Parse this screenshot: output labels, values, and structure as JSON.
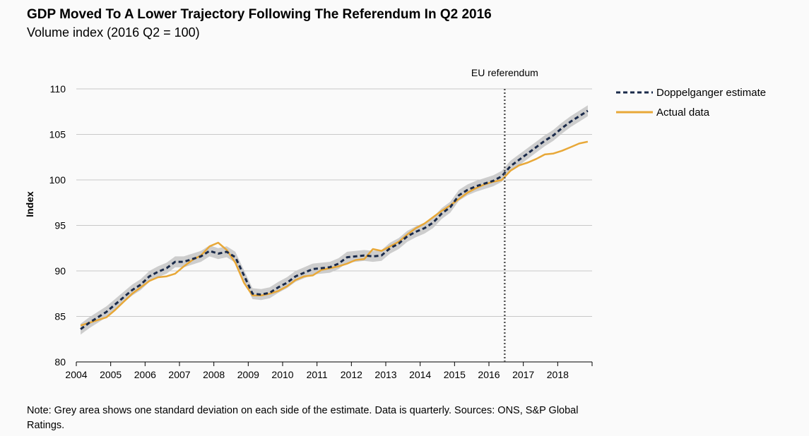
{
  "header": {
    "title": "GDP Moved To A Lower Trajectory Following The Referendum In Q2 2016",
    "subtitle": "Volume index (2016 Q2 = 100)"
  },
  "note": "Note: Grey area shows one standard deviation on each side of the estimate. Data is quarterly. Sources: ONS, S&P Global Ratings.",
  "chart_data": {
    "type": "line",
    "title": "GDP Moved To A Lower Trajectory Following The Referendum In Q2 2016",
    "subtitle": "Volume index (2016 Q2 = 100)",
    "xlabel": "",
    "ylabel": "Index",
    "x_ticks": [
      "2004",
      "2005",
      "2006",
      "2007",
      "2008",
      "2009",
      "2010",
      "2011",
      "2012",
      "2013",
      "2014",
      "2015",
      "2016",
      "2017",
      "2018"
    ],
    "y_ticks": [
      80,
      85,
      90,
      95,
      100,
      105,
      110
    ],
    "ylim": [
      80,
      110
    ],
    "xlim": [
      "2004 Q1",
      "2018 Q4"
    ],
    "grid": "horizontal",
    "legend_position": "top-right, outside plot",
    "annotation": {
      "label": "EU referendum",
      "x": "2016 Q2",
      "style": "dotted vertical line"
    },
    "band": {
      "description": "one standard deviation on each side of the estimate",
      "width": 0.6,
      "color": "#c8c8c8"
    },
    "x": [
      "2004 Q1",
      "2004 Q2",
      "2004 Q3",
      "2004 Q4",
      "2005 Q1",
      "2005 Q2",
      "2005 Q3",
      "2005 Q4",
      "2006 Q1",
      "2006 Q2",
      "2006 Q3",
      "2006 Q4",
      "2007 Q1",
      "2007 Q2",
      "2007 Q3",
      "2007 Q4",
      "2008 Q1",
      "2008 Q2",
      "2008 Q3",
      "2008 Q4",
      "2009 Q1",
      "2009 Q2",
      "2009 Q3",
      "2009 Q4",
      "2010 Q1",
      "2010 Q2",
      "2010 Q3",
      "2010 Q4",
      "2011 Q1",
      "2011 Q2",
      "2011 Q3",
      "2011 Q4",
      "2012 Q1",
      "2012 Q2",
      "2012 Q3",
      "2012 Q4",
      "2013 Q1",
      "2013 Q2",
      "2013 Q3",
      "2013 Q4",
      "2014 Q1",
      "2014 Q2",
      "2014 Q3",
      "2014 Q4",
      "2015 Q1",
      "2015 Q2",
      "2015 Q3",
      "2015 Q4",
      "2016 Q1",
      "2016 Q2",
      "2016 Q3",
      "2016 Q4",
      "2017 Q1",
      "2017 Q2",
      "2017 Q3",
      "2017 Q4",
      "2018 Q1",
      "2018 Q2",
      "2018 Q3",
      "2018 Q4"
    ],
    "series": [
      {
        "name": "Doppelganger estimate",
        "color": "#1a2a4a",
        "style": "dashed",
        "values": [
          83.6,
          84.3,
          84.9,
          85.5,
          86.3,
          87.1,
          87.9,
          88.5,
          89.4,
          89.9,
          90.3,
          91.0,
          91.0,
          91.3,
          91.6,
          92.2,
          91.9,
          92.1,
          91.5,
          89.5,
          87.5,
          87.4,
          87.6,
          88.2,
          88.7,
          89.4,
          89.8,
          90.2,
          90.3,
          90.4,
          90.8,
          91.5,
          91.6,
          91.7,
          91.6,
          91.7,
          92.5,
          93.0,
          93.8,
          94.3,
          94.7,
          95.3,
          96.3,
          97.0,
          98.3,
          98.9,
          99.3,
          99.6,
          99.9,
          100.4,
          101.5,
          102.2,
          102.9,
          103.6,
          104.3,
          104.9,
          105.7,
          106.4,
          107.0,
          107.6
        ]
      },
      {
        "name": "Actual data",
        "color": "#e8a838",
        "style": "solid",
        "values": [
          84.0,
          84.3,
          84.6,
          84.9,
          85.7,
          86.6,
          87.5,
          88.2,
          88.9,
          89.3,
          89.4,
          89.7,
          90.5,
          91.2,
          91.7,
          92.7,
          93.1,
          92.3,
          90.9,
          88.7,
          87.3,
          87.3,
          87.5,
          87.8,
          88.3,
          89.0,
          89.4,
          89.5,
          90.1,
          90.3,
          90.5,
          90.8,
          91.2,
          91.3,
          92.4,
          92.2,
          92.7,
          93.2,
          94.0,
          94.7,
          95.2,
          95.9,
          96.6,
          97.2,
          97.9,
          98.6,
          99.1,
          99.5,
          99.8,
          100.0,
          101.0,
          101.6,
          101.9,
          102.3,
          102.8,
          102.9,
          103.2,
          103.6,
          104.0,
          104.2
        ]
      }
    ]
  }
}
